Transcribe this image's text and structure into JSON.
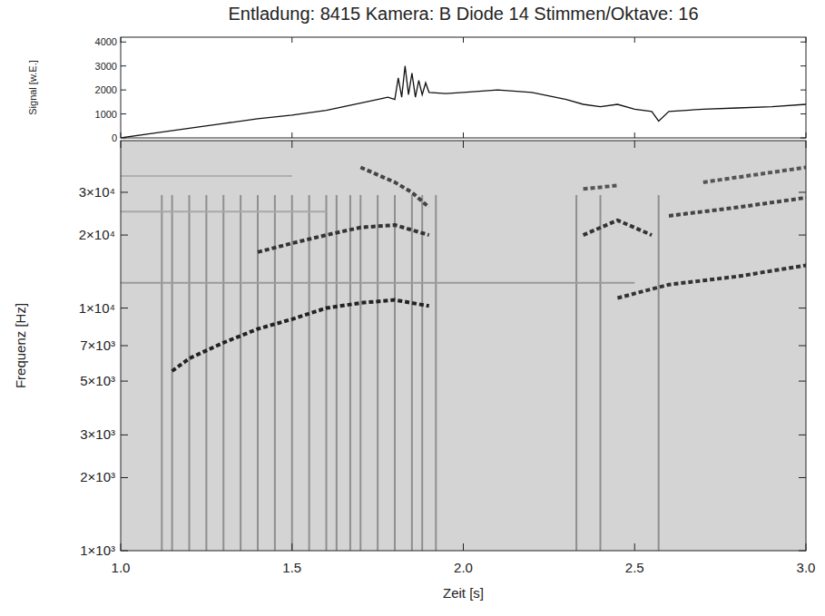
{
  "chart_data": [
    {
      "type": "line",
      "title": "Entladung: 8415 Kamera: B Diode 14 Stimmen/Oktave: 16",
      "y_label": "Signal [w.E.]",
      "xlim": [
        1.0,
        3.0
      ],
      "xticks": [
        {
          "value": 1.0,
          "label": "1.0"
        },
        {
          "value": 1.5,
          "label": "1.5"
        },
        {
          "value": 2.0,
          "label": "2.0"
        },
        {
          "value": 2.5,
          "label": "2.5"
        },
        {
          "value": 3.0,
          "label": "3.0"
        }
      ],
      "ylim": [
        0,
        4200
      ],
      "yticks": [
        0,
        1000,
        2000,
        3000,
        4000
      ],
      "tick_labels": "y",
      "color": "#111111",
      "x": [
        1.0,
        1.1,
        1.2,
        1.3,
        1.4,
        1.5,
        1.6,
        1.65,
        1.7,
        1.75,
        1.78,
        1.8,
        1.81,
        1.82,
        1.83,
        1.84,
        1.85,
        1.86,
        1.87,
        1.88,
        1.89,
        1.9,
        1.95,
        2.0,
        2.1,
        2.2,
        2.3,
        2.35,
        2.4,
        2.45,
        2.5,
        2.55,
        2.57,
        2.6,
        2.7,
        2.8,
        2.9,
        3.0
      ],
      "values": [
        0,
        200,
        400,
        600,
        800,
        950,
        1150,
        1300,
        1450,
        1600,
        1700,
        1600,
        2500,
        1700,
        3000,
        1800,
        2700,
        1700,
        2400,
        1800,
        2300,
        1900,
        1850,
        1900,
        2000,
        1900,
        1600,
        1400,
        1300,
        1400,
        1200,
        1100,
        700,
        1100,
        1200,
        1250,
        1300,
        1400
      ]
    },
    {
      "type": "spectrogram",
      "x_label": "Zeit [s]",
      "y_label": "Frequenz [Hz]",
      "log": "y",
      "xlim": [
        1.0,
        3.0
      ],
      "xticks": [
        {
          "value": 1.0,
          "label": "1.0"
        },
        {
          "value": 1.5,
          "label": "1.5"
        },
        {
          "value": 2.0,
          "label": "2.0"
        },
        {
          "value": 2.5,
          "label": "2.5"
        },
        {
          "value": 3.0,
          "label": "3.0"
        }
      ],
      "ylim": [
        1000,
        49000
      ],
      "yticks": [
        {
          "value": 1000,
          "label": "1×10³"
        },
        {
          "value": 2000,
          "label": "2×10³"
        },
        {
          "value": 3000,
          "label": "3×10³"
        },
        {
          "value": 5000,
          "label": "5×10³"
        },
        {
          "value": 7000,
          "label": "7×10³"
        },
        {
          "value": 10000,
          "label": "1×10⁴"
        },
        {
          "value": 20000,
          "label": "2×10⁴"
        },
        {
          "value": 30000,
          "label": "3×10⁴"
        }
      ],
      "color": "#d4d4d4",
      "series": [
        {
          "color": "#222222",
          "x": [
            1.15,
            1.2,
            1.3,
            1.4,
            1.5,
            1.6,
            1.7,
            1.8,
            1.9
          ],
          "values": [
            5500,
            6200,
            7200,
            8200,
            9000,
            10000,
            10500,
            10800,
            10200
          ]
        },
        {
          "color": "#333333",
          "x": [
            1.4,
            1.5,
            1.6,
            1.7,
            1.8,
            1.9
          ],
          "values": [
            17000,
            18500,
            20000,
            21500,
            22000,
            20000
          ]
        },
        {
          "color": "#444444",
          "x": [
            1.7,
            1.8,
            1.85,
            1.9
          ],
          "values": [
            38000,
            33000,
            30000,
            26000
          ]
        },
        {
          "color": "#333333",
          "x": [
            2.35,
            2.45,
            2.55
          ],
          "values": [
            20000,
            23000,
            20000
          ]
        },
        {
          "color": "#555555",
          "x": [
            2.35,
            2.45
          ],
          "values": [
            31000,
            32000
          ]
        },
        {
          "color": "#333333",
          "x": [
            2.45,
            2.6,
            2.8,
            3.0
          ],
          "values": [
            11000,
            12500,
            13500,
            15000
          ]
        },
        {
          "color": "#444444",
          "x": [
            2.6,
            2.8,
            3.0
          ],
          "values": [
            24000,
            26000,
            28500
          ]
        },
        {
          "color": "#555555",
          "x": [
            2.7,
            3.0
          ],
          "values": [
            33000,
            38000
          ]
        },
        {
          "color": "#9a9a9a",
          "line_style": "solid",
          "x": [
            1.0,
            2.5
          ],
          "values": [
            12700,
            12700
          ]
        },
        {
          "color": "#a8a8a8",
          "line_style": "solid",
          "x": [
            1.0,
            1.6
          ],
          "values": [
            25000,
            25000
          ]
        },
        {
          "color": "#b0b0b0",
          "line_style": "solid",
          "x": [
            1.0,
            1.5
          ],
          "values": [
            35000,
            35000
          ]
        }
      ],
      "bursts": [
        1.12,
        1.15,
        1.2,
        1.25,
        1.3,
        1.35,
        1.4,
        1.45,
        1.5,
        1.55,
        1.6,
        1.63,
        1.67,
        1.7,
        1.75,
        1.8,
        1.85,
        1.88,
        1.92,
        2.33,
        2.4,
        2.57
      ]
    }
  ]
}
